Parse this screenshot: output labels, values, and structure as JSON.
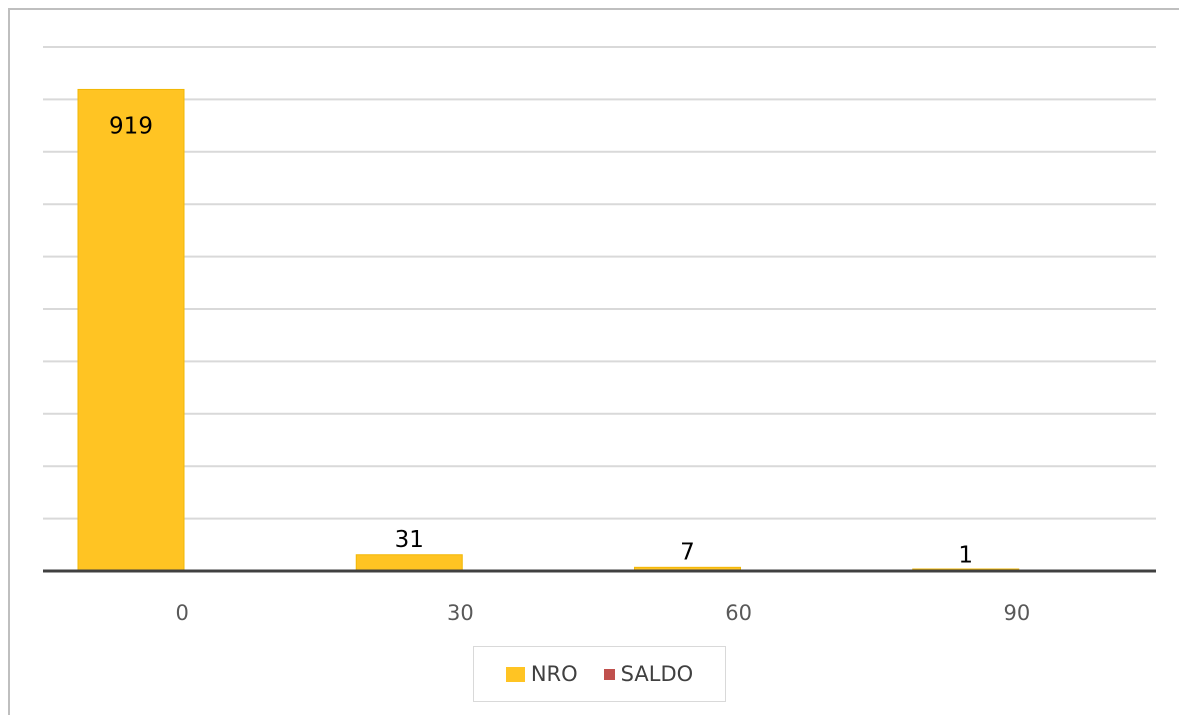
{
  "chart_data": {
    "type": "bar",
    "title": "",
    "xlabel": "",
    "ylabel": "",
    "categories": [
      "0",
      "30",
      "60",
      "90"
    ],
    "series": [
      {
        "name": "NRO",
        "color": "#FFC423",
        "values": [
          919,
          31,
          7,
          1
        ],
        "data_labels": [
          "919",
          "31",
          "7",
          "1"
        ]
      },
      {
        "name": "SALDO",
        "color": "#C0504D",
        "values": [
          0,
          0,
          0,
          0
        ]
      }
    ],
    "ylim": [
      0,
      1000
    ],
    "grid": true,
    "y_tick_labels_shown": false,
    "legend_position": "bottom"
  }
}
